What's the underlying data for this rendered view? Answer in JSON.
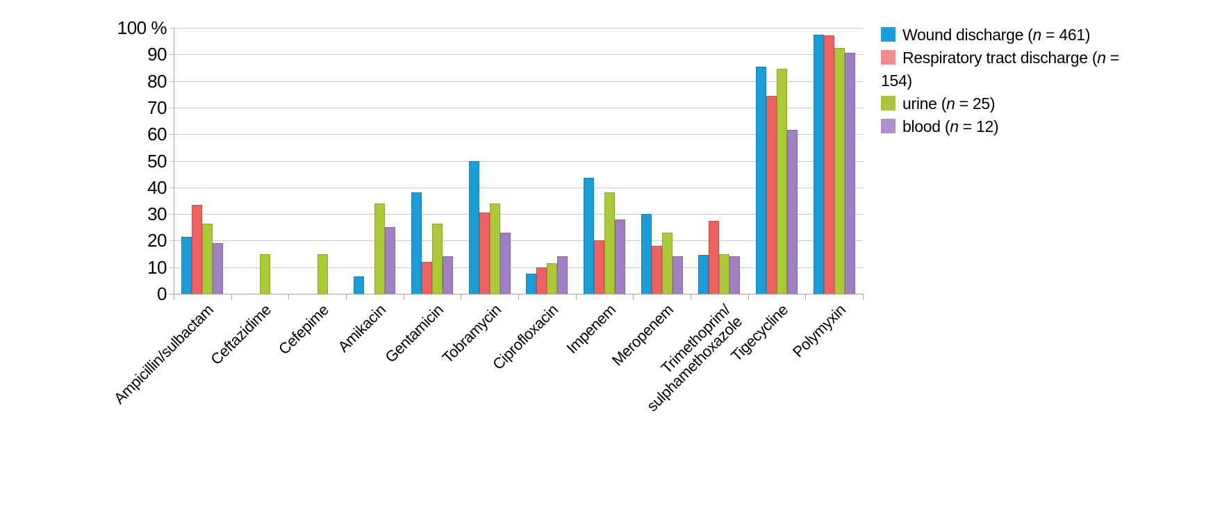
{
  "chart_data": {
    "type": "bar",
    "title": "",
    "unit": "%",
    "grid": true,
    "legend_position": "right",
    "categories": [
      "Ampicillin/sulbactam",
      "Ceftazidime",
      "Cefepime",
      "Amikacin",
      "Gentamicin",
      "Tobramycin",
      "Ciprofloxacin",
      "Impenem",
      "Meropenem",
      "Trimethoprim/\nsulphamethoxazole",
      "Tigecycline",
      "Polymyxin"
    ],
    "series": [
      {
        "name": "Wound discharge (n = 461)",
        "n": 461,
        "color": "#1b9dd9",
        "legend_swatch_color": "#1b9dd9",
        "values": [
          21.5,
          0,
          0,
          6.5,
          38,
          50,
          7.5,
          43.5,
          30,
          14.5,
          85.5,
          97.5
        ]
      },
      {
        "name": "Respiratory tract discharge (n = 154)",
        "n": 154,
        "color": "#ee6262",
        "legend_swatch_color": "#f18a8a",
        "values": [
          33.5,
          0,
          0,
          0,
          12,
          30.5,
          10,
          20,
          18,
          27.5,
          74.5,
          97
        ]
      },
      {
        "name": "urine (n = 25)",
        "n": 25,
        "color": "#abc837",
        "legend_swatch_color": "#a9c43e",
        "values": [
          26.5,
          15,
          15,
          34,
          26.5,
          34,
          11.5,
          38,
          23,
          15,
          84.5,
          92.5
        ]
      },
      {
        "name": "blood (n = 12)",
        "n": 12,
        "color": "#a17fc3",
        "legend_swatch_color": "#ae8ecb",
        "values": [
          19,
          0,
          0,
          25,
          14,
          23,
          14,
          28,
          14,
          14,
          61.5,
          90.5
        ]
      }
    ],
    "y_axis": {
      "min": 0,
      "max": 100,
      "step": 10,
      "tick_labels": [
        "100 %",
        "90",
        "80",
        "70",
        "60",
        "50",
        "40",
        "30",
        "20",
        "10",
        "0"
      ]
    }
  },
  "colors": {
    "background": "#ffffff",
    "gridline": "#c9c9c9",
    "axis": "#a3a3a3",
    "text": "#000000"
  }
}
